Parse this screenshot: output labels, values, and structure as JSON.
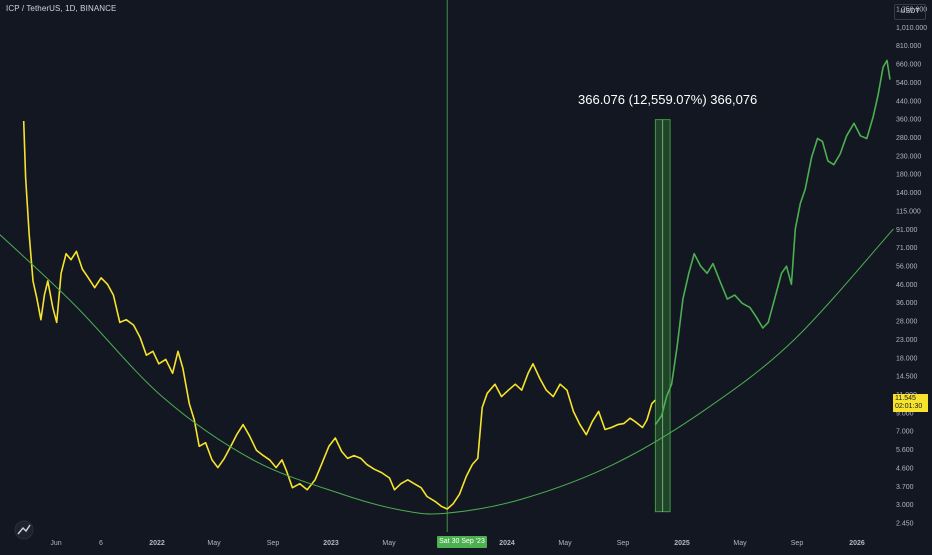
{
  "header": {
    "symbol_title": "ICP / TetherUS, 1D, BINANCE",
    "currency_button": "USDT"
  },
  "measure_label": "366.076 (12,559.07%) 366,076",
  "last_price": {
    "value": "11.545",
    "countdown": "02:01:30"
  },
  "crosshair_date": "Sat 30 Sep '23",
  "colors": {
    "background": "#131722",
    "history": "#f7e32b",
    "projection": "#4caf50",
    "curve": "#4caf50",
    "box_fill": "#2e7d32"
  },
  "chart_data": {
    "type": "line",
    "scale": "log",
    "grid": false,
    "axes": {
      "y_ticks": [
        "1,250.000",
        "1,010.000",
        "810.000",
        "660.000",
        "540.000",
        "440.000",
        "360.000",
        "280.000",
        "230.000",
        "180.000",
        "140.000",
        "115.000",
        "91.000",
        "71.000",
        "56.000",
        "46.000",
        "36.000",
        "28.000",
        "23.000",
        "18.000",
        "14.500",
        "11.000",
        "9.000",
        "7.000",
        "5.600",
        "4.600",
        "3.700",
        "3.000",
        "2.450"
      ],
      "x_ticks": [
        "Jun",
        "6",
        "2022",
        "May",
        "Sep",
        "2023",
        "May",
        "2024",
        "May",
        "Sep",
        "2025",
        "May",
        "Sep",
        "2026"
      ]
    },
    "series": [
      {
        "role": "history",
        "points": [
          [
            "2021-05-24",
            360
          ],
          [
            "2021-05-28",
            180
          ],
          [
            "2021-06-04",
            90
          ],
          [
            "2021-06-12",
            50
          ],
          [
            "2021-06-20",
            40
          ],
          [
            "2021-06-28",
            31
          ],
          [
            "2021-07-05",
            42
          ],
          [
            "2021-07-12",
            50
          ],
          [
            "2021-07-22",
            36
          ],
          [
            "2021-07-30",
            30
          ],
          [
            "2021-08-08",
            55
          ],
          [
            "2021-08-18",
            70
          ],
          [
            "2021-08-28",
            65
          ],
          [
            "2021-09-08",
            72
          ],
          [
            "2021-09-20",
            58
          ],
          [
            "2021-10-02",
            52
          ],
          [
            "2021-10-15",
            46
          ],
          [
            "2021-10-28",
            52
          ],
          [
            "2021-11-10",
            48
          ],
          [
            "2021-11-22",
            42
          ],
          [
            "2021-12-05",
            30
          ],
          [
            "2021-12-18",
            31
          ],
          [
            "2022-01-02",
            29
          ],
          [
            "2022-01-15",
            25
          ],
          [
            "2022-01-28",
            20
          ],
          [
            "2022-02-10",
            21
          ],
          [
            "2022-02-22",
            18
          ],
          [
            "2022-03-08",
            19
          ],
          [
            "2022-03-22",
            16
          ],
          [
            "2022-04-02",
            21
          ],
          [
            "2022-04-12",
            17
          ],
          [
            "2022-04-25",
            11
          ],
          [
            "2022-05-05",
            9
          ],
          [
            "2022-05-15",
            6.5
          ],
          [
            "2022-05-28",
            6.8
          ],
          [
            "2022-06-10",
            5.5
          ],
          [
            "2022-06-22",
            5.0
          ],
          [
            "2022-07-05",
            5.6
          ],
          [
            "2022-07-18",
            6.5
          ],
          [
            "2022-07-30",
            7.5
          ],
          [
            "2022-08-12",
            8.5
          ],
          [
            "2022-08-25",
            7.4
          ],
          [
            "2022-09-08",
            6.2
          ],
          [
            "2022-09-22",
            5.8
          ],
          [
            "2022-10-05",
            5.5
          ],
          [
            "2022-10-18",
            5.0
          ],
          [
            "2022-10-30",
            5.5
          ],
          [
            "2022-11-08",
            4.8
          ],
          [
            "2022-11-20",
            3.9
          ],
          [
            "2022-12-05",
            4.1
          ],
          [
            "2022-12-20",
            3.8
          ],
          [
            "2023-01-05",
            4.3
          ],
          [
            "2023-01-18",
            5.2
          ],
          [
            "2023-02-02",
            6.5
          ],
          [
            "2023-02-15",
            7.2
          ],
          [
            "2023-02-28",
            6.1
          ],
          [
            "2023-03-12",
            5.6
          ],
          [
            "2023-03-25",
            5.8
          ],
          [
            "2023-04-08",
            5.6
          ],
          [
            "2023-04-20",
            5.2
          ],
          [
            "2023-05-05",
            4.9
          ],
          [
            "2023-05-20",
            4.7
          ],
          [
            "2023-06-05",
            4.4
          ],
          [
            "2023-06-15",
            3.8
          ],
          [
            "2023-06-28",
            4.1
          ],
          [
            "2023-07-12",
            4.3
          ],
          [
            "2023-07-25",
            4.1
          ],
          [
            "2023-08-08",
            3.9
          ],
          [
            "2023-08-20",
            3.5
          ],
          [
            "2023-09-05",
            3.3
          ],
          [
            "2023-09-18",
            3.1
          ],
          [
            "2023-09-30",
            3.0
          ],
          [
            "2023-10-12",
            3.2
          ],
          [
            "2023-10-25",
            3.6
          ],
          [
            "2023-11-08",
            4.5
          ],
          [
            "2023-11-20",
            5.2
          ],
          [
            "2023-12-01",
            5.6
          ],
          [
            "2023-12-10",
            10.5
          ],
          [
            "2023-12-20",
            12.5
          ],
          [
            "2024-01-05",
            14
          ],
          [
            "2024-01-18",
            12
          ],
          [
            "2024-02-01",
            13
          ],
          [
            "2024-02-15",
            14
          ],
          [
            "2024-02-28",
            13
          ],
          [
            "2024-03-12",
            16
          ],
          [
            "2024-03-22",
            18
          ],
          [
            "2024-04-05",
            15
          ],
          [
            "2024-04-18",
            13
          ],
          [
            "2024-05-02",
            12
          ],
          [
            "2024-05-16",
            14
          ],
          [
            "2024-05-30",
            13
          ],
          [
            "2024-06-12",
            10
          ],
          [
            "2024-06-25",
            8.5
          ],
          [
            "2024-07-08",
            7.5
          ],
          [
            "2024-07-20",
            8.8
          ],
          [
            "2024-08-02",
            10
          ],
          [
            "2024-08-15",
            8
          ],
          [
            "2024-08-28",
            8.2
          ],
          [
            "2024-09-10",
            8.5
          ],
          [
            "2024-09-22",
            8.6
          ],
          [
            "2024-10-05",
            9.2
          ],
          [
            "2024-10-18",
            8.7
          ],
          [
            "2024-10-30",
            8.2
          ],
          [
            "2024-11-08",
            9.0
          ],
          [
            "2024-11-18",
            11.0
          ],
          [
            "2024-11-25",
            11.5
          ]
        ]
      },
      {
        "role": "projection",
        "points": [
          [
            "2024-11-25",
            8.5
          ],
          [
            "2024-12-08",
            9.5
          ],
          [
            "2024-12-18",
            12
          ],
          [
            "2024-12-28",
            14
          ],
          [
            "2025-01-08",
            22
          ],
          [
            "2025-01-20",
            40
          ],
          [
            "2025-02-01",
            55
          ],
          [
            "2025-02-12",
            70
          ],
          [
            "2025-02-25",
            60
          ],
          [
            "2025-03-10",
            55
          ],
          [
            "2025-03-22",
            62
          ],
          [
            "2025-04-05",
            50
          ],
          [
            "2025-04-20",
            40
          ],
          [
            "2025-05-05",
            42
          ],
          [
            "2025-05-20",
            38
          ],
          [
            "2025-06-05",
            36
          ],
          [
            "2025-06-18",
            32
          ],
          [
            "2025-07-01",
            28
          ],
          [
            "2025-07-12",
            30
          ],
          [
            "2025-07-25",
            40
          ],
          [
            "2025-08-08",
            55
          ],
          [
            "2025-08-18",
            60
          ],
          [
            "2025-08-28",
            48
          ],
          [
            "2025-09-05",
            95
          ],
          [
            "2025-09-15",
            130
          ],
          [
            "2025-09-25",
            155
          ],
          [
            "2025-10-08",
            230
          ],
          [
            "2025-10-20",
            290
          ],
          [
            "2025-10-30",
            280
          ],
          [
            "2025-11-10",
            220
          ],
          [
            "2025-11-22",
            210
          ],
          [
            "2025-12-05",
            240
          ],
          [
            "2025-12-18",
            300
          ],
          [
            "2026-01-02",
            350
          ],
          [
            "2026-01-15",
            300
          ],
          [
            "2026-01-28",
            290
          ],
          [
            "2026-02-10",
            380
          ],
          [
            "2026-02-20",
            500
          ],
          [
            "2026-03-02",
            700
          ],
          [
            "2026-03-10",
            760
          ],
          [
            "2026-03-16",
            600
          ]
        ]
      },
      {
        "role": "curve",
        "points": [
          [
            "2021-03-15",
            100
          ],
          [
            "2021-09-01",
            38
          ],
          [
            "2022-03-01",
            12
          ],
          [
            "2022-09-01",
            5.5
          ],
          [
            "2023-03-01",
            3.6
          ],
          [
            "2023-07-01",
            2.95
          ],
          [
            "2023-09-30",
            2.85
          ],
          [
            "2024-03-01",
            3.4
          ],
          [
            "2024-09-01",
            5.2
          ],
          [
            "2025-03-01",
            10
          ],
          [
            "2025-09-01",
            24
          ],
          [
            "2026-03-23",
            95
          ]
        ]
      }
    ],
    "measure_box": {
      "x_start": "2024-11-25",
      "x_end": "2024-12-25",
      "y_low": 2.9,
      "y_high": 366
    },
    "crosshair_x": "2023-09-30"
  }
}
